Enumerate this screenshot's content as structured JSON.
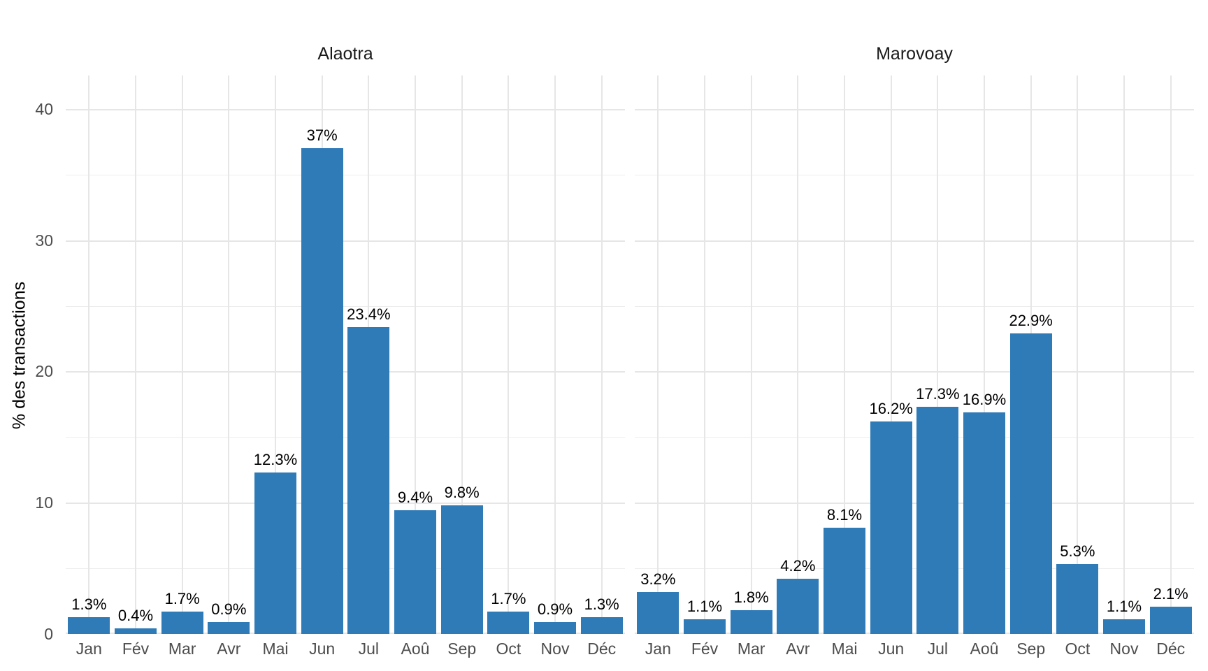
{
  "chart_data": {
    "type": "bar",
    "ylabel": "% des transactions",
    "categories": [
      "Jan",
      "Fév",
      "Mar",
      "Avr",
      "Mai",
      "Jun",
      "Jul",
      "Aoû",
      "Sep",
      "Oct",
      "Nov",
      "Déc"
    ],
    "ytick_labels": [
      "0",
      "10",
      "20",
      "30",
      "40"
    ],
    "ytick_values": [
      0,
      10,
      20,
      30,
      40
    ],
    "minor_ytick_values": [
      5,
      15,
      25,
      35
    ],
    "ylim": [
      0,
      42.55
    ],
    "grid": "on",
    "legend": "none",
    "facets": [
      {
        "title": "Alaotra",
        "values": [
          1.3,
          0.4,
          1.7,
          0.9,
          12.3,
          37,
          23.4,
          9.4,
          9.8,
          1.7,
          0.9,
          1.3
        ],
        "labels": [
          "1.3%",
          "0.4%",
          "1.7%",
          "0.9%",
          "12.3%",
          "37%",
          "23.4%",
          "9.4%",
          "9.8%",
          "1.7%",
          "0.9%",
          "1.3%"
        ]
      },
      {
        "title": "Marovoay",
        "values": [
          3.2,
          1.1,
          1.8,
          4.2,
          8.1,
          16.2,
          17.3,
          16.9,
          22.9,
          5.3,
          1.1,
          2.1
        ],
        "labels": [
          "3.2%",
          "1.1%",
          "1.8%",
          "4.2%",
          "8.1%",
          "16.2%",
          "17.3%",
          "16.9%",
          "22.9%",
          "5.3%",
          "1.1%",
          "2.1%"
        ]
      }
    ],
    "colors": {
      "bar": "#2e7bb8",
      "grid_major": "#e6e6e6",
      "grid_minor": "#ededed",
      "tick_label": "#4d4d4d",
      "bar_label": "#000000",
      "facet_title": "#1a1a1a",
      "axis_title": "#000000",
      "background": "#ffffff"
    }
  }
}
